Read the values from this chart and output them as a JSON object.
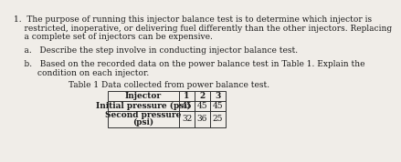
{
  "background_color": "#f0ede8",
  "line1": "1.  The purpose of running this injector balance test is to determine which injector is",
  "line2": "    restricted, inoperative, or delivering fuel differently than the other injectors. Replacing",
  "line3": "    a complete set of injectors can be expensive.",
  "line_a": "    a.   Describe the step involve in conducting injector balance test.",
  "line_b1": "    b.   Based on the recorded data on the power balance test in Table 1. Explain the",
  "line_b2": "         condition on each injector.",
  "table_title": "Table 1 Data collected from power balance test.",
  "col_headers": [
    "Injector",
    "1",
    "2",
    "3"
  ],
  "row1_label": "Initial pressure (psi)",
  "row1_vals": [
    "45",
    "45",
    "45"
  ],
  "row2_label1": "Second pressure",
  "row2_label2": "(psi)",
  "row2_vals": [
    "32",
    "36",
    "25"
  ],
  "font_size": 6.5,
  "font_size_table": 6.5,
  "text_color": "#1a1a1a"
}
